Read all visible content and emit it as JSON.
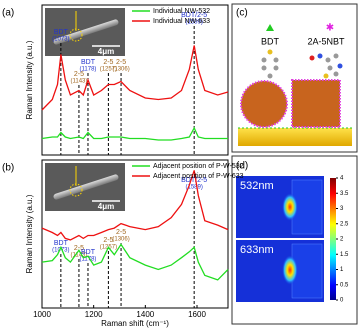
{
  "chart_data": [
    {
      "type": "line",
      "panel": "(a)",
      "ylabel": "Raman Intensity (a.u.)",
      "xlim": [
        1000,
        1720
      ],
      "ylim": [
        0,
        100
      ],
      "x": [
        1000,
        1040,
        1060,
        1073,
        1090,
        1110,
        1143,
        1160,
        1178,
        1200,
        1230,
        1257,
        1280,
        1306,
        1340,
        1400,
        1450,
        1500,
        1540,
        1570,
        1589,
        1605,
        1630,
        1680,
        1720
      ],
      "series": [
        {
          "name": "Individual NW-532",
          "color": "#22dd22",
          "values": [
            11,
            12,
            12,
            15,
            12,
            11,
            12,
            11,
            15,
            11,
            11,
            12,
            12,
            12,
            11,
            11,
            10,
            10,
            11,
            12,
            18,
            12,
            11,
            11,
            11
          ]
        },
        {
          "name": "Individual NW-633",
          "color": "#ee1111",
          "values": [
            30,
            37,
            47,
            67,
            50,
            40,
            43,
            40,
            50,
            40,
            43,
            47,
            47,
            49,
            43,
            38,
            37,
            38,
            43,
            57,
            73,
            57,
            43,
            40,
            42
          ]
        }
      ],
      "peaks": [
        {
          "name": "BDT",
          "x": 1073,
          "x_label": "(1073)",
          "color": "#2233cc"
        },
        {
          "name": "2-5",
          "x": 1143,
          "x_label": "(1143)",
          "color": "#a0661e"
        },
        {
          "name": "BDT",
          "x": 1178,
          "x_label": "(1178)",
          "color": "#2233cc"
        },
        {
          "name": "2-5",
          "x": 1257,
          "x_label": "(1257)",
          "color": "#a0661e"
        },
        {
          "name": "2-5",
          "x": 1306,
          "x_label": "(1306)",
          "color": "#a0661e"
        },
        {
          "name": "BDT/2-5",
          "x": 1589,
          "x_label": "(1589)",
          "color": "#2233cc"
        }
      ],
      "inset_scale": "4μm"
    },
    {
      "type": "line",
      "panel": "(b)",
      "ylabel": "Raman Intensity (a.u.)",
      "xlabel": "Raman shift (cm⁻¹)",
      "xlim": [
        1000,
        1720
      ],
      "ylim": [
        0,
        100
      ],
      "xticks": [
        1000,
        1200,
        1400,
        1600
      ],
      "x": [
        1000,
        1040,
        1060,
        1073,
        1090,
        1110,
        1143,
        1160,
        1178,
        1200,
        1230,
        1257,
        1280,
        1306,
        1340,
        1400,
        1450,
        1500,
        1540,
        1570,
        1589,
        1605,
        1630,
        1680,
        1720
      ],
      "series": [
        {
          "name": "Adjacent position of P-W-532",
          "color": "#22dd22",
          "values": [
            31,
            32,
            36,
            41,
            34,
            31,
            39,
            34,
            35,
            29,
            31,
            41,
            36,
            43,
            34,
            29,
            26,
            29,
            34,
            38,
            41,
            31,
            22,
            19,
            26
          ]
        },
        {
          "name": "Adjacent position of P-W-633",
          "color": "#ee1111",
          "values": [
            54,
            51,
            49,
            51,
            47,
            46,
            49,
            47,
            49,
            49,
            51,
            53,
            54,
            57,
            55,
            53,
            55,
            61,
            70,
            83,
            93,
            76,
            59,
            56,
            53
          ]
        }
      ],
      "peaks": [
        {
          "name": "BDT",
          "x": 1073,
          "x_label": "(1073)",
          "color": "#2233cc"
        },
        {
          "name": "2-5",
          "x": 1143,
          "x_label": "(1143)",
          "color": "#a0661e"
        },
        {
          "name": "BDT",
          "x": 1178,
          "x_label": "(1178)",
          "color": "#2233cc"
        },
        {
          "name": "2-5",
          "x": 1257,
          "x_label": "(1257)",
          "color": "#a0661e"
        },
        {
          "name": "2-5",
          "x": 1306,
          "x_label": "(1306)",
          "color": "#a0661e"
        },
        {
          "name": "BDT/2-5",
          "x": 1589,
          "x_label": "(1589)",
          "color": "#2233cc"
        }
      ],
      "inset_scale": "4μm"
    }
  ],
  "diagram": {
    "panel": "(c)",
    "molecule_1": "BDT",
    "molecule_2": "2A-5NBT"
  },
  "heatmap": {
    "panel": "(d)",
    "maps": [
      "532nm",
      "633nm"
    ],
    "colorbar_lim": [
      0,
      4
    ],
    "colorbar_ticks": [
      0,
      0.5,
      1,
      1.5,
      2,
      2.5,
      3,
      3.5,
      4
    ]
  }
}
